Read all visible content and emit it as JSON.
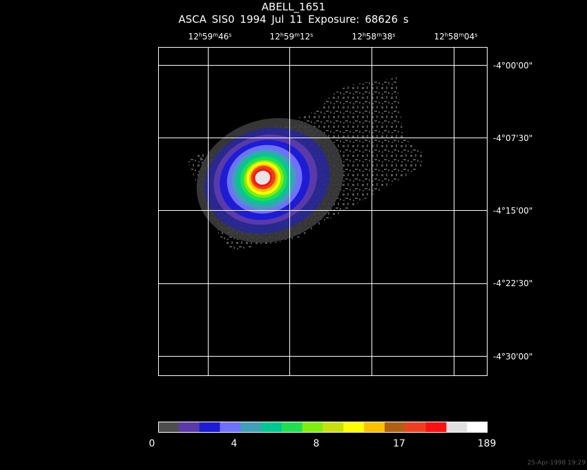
{
  "header": {
    "title": "ABELL_1651",
    "subtitle": "ASCA SIS0   1994 Jul 11     Exposure: 68626 s"
  },
  "ra_ticks": [
    {
      "h": "12",
      "m": "59",
      "s": "46"
    },
    {
      "h": "12",
      "m": "59",
      "s": "12"
    },
    {
      "h": "12",
      "m": "58",
      "s": "38"
    },
    {
      "h": "12",
      "m": "58",
      "s": "04"
    }
  ],
  "dec_ticks": [
    "-4°00'00\"",
    "-4°07'30\"",
    "-4°15'00\"",
    "-4°22'30\"",
    "-4°30'00\""
  ],
  "colorbar": {
    "colors": [
      "#4d4d4d",
      "#5a3aa8",
      "#1c1cd6",
      "#7070ff",
      "#3fa0b8",
      "#00c890",
      "#20e050",
      "#80ee10",
      "#c8e010",
      "#ffff00",
      "#ffc000",
      "#b06010",
      "#ee4020",
      "#ff1010",
      "#e0e0e0",
      "#ffffff"
    ],
    "labels": [
      "0",
      "4",
      "8",
      "17",
      "189"
    ]
  },
  "footer": {
    "timestamp": "25-Apr-1998 19:29"
  }
}
